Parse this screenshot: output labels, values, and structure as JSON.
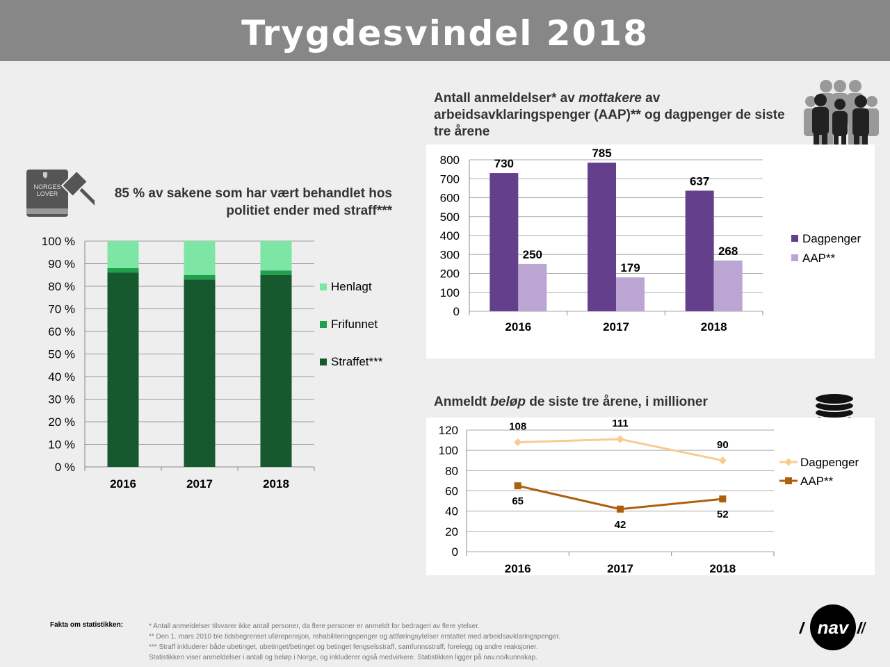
{
  "header": {
    "title": "Trygdesvindel 2018"
  },
  "left_chart": {
    "title": "85 % av sakene som har vært behandlet hos politiet ender med straff***",
    "icon": "law-book-gavel-icon",
    "book_label_1": "NORGES",
    "book_label_2": "LOVER"
  },
  "right_chart": {
    "title_part1": "Antall anmeldelser* av ",
    "title_emph": "mottakere",
    "title_part2": " av arbeidsavklaringspenger (AAP)** og dagpenger de siste tre årene",
    "icon": "people-group-icon"
  },
  "line_chart": {
    "title_part1": "Anmeldt ",
    "title_emph": "beløp",
    "title_part2": " de siste tre årene, i millioner",
    "icon": "coins-stack-icon"
  },
  "colors": {
    "straffet": "#17592e",
    "frifunnet": "#1fa04a",
    "henlagt": "#7de6a5",
    "dagpenger_bar": "#643f8c",
    "aap_bar": "#bba6d3",
    "dagpenger_line": "#f9cb90",
    "aap_line": "#ad5f0c"
  },
  "chart_data": [
    {
      "type": "bar",
      "stacked": true,
      "categories": [
        "2016",
        "2017",
        "2018"
      ],
      "series": [
        {
          "name": "Straffet***",
          "values": [
            86,
            83,
            85
          ]
        },
        {
          "name": "Frifunnet",
          "values": [
            2,
            2,
            2
          ]
        },
        {
          "name": "Henlagt",
          "values": [
            12,
            15,
            13
          ]
        }
      ],
      "ylim": [
        0,
        100
      ],
      "yticks": [
        "0 %",
        "10 %",
        "20 %",
        "30 %",
        "40 %",
        "50 %",
        "60 %",
        "70 %",
        "80 %",
        "90 %",
        "100 %"
      ],
      "grid": true,
      "legend": "right"
    },
    {
      "type": "bar",
      "categories": [
        "2016",
        "2017",
        "2018"
      ],
      "series": [
        {
          "name": "Dagpenger",
          "values": [
            730,
            785,
            637
          ]
        },
        {
          "name": "AAP**",
          "values": [
            250,
            179,
            268
          ]
        }
      ],
      "ylim": [
        0,
        800
      ],
      "yticks": [
        "0",
        "100",
        "200",
        "300",
        "400",
        "500",
        "600",
        "700",
        "800"
      ],
      "grid": true,
      "legend": "right"
    },
    {
      "type": "line",
      "categories": [
        "2016",
        "2017",
        "2018"
      ],
      "series": [
        {
          "name": "Dagpenger",
          "values": [
            108,
            111,
            90
          ]
        },
        {
          "name": "AAP**",
          "values": [
            65,
            42,
            52
          ]
        }
      ],
      "ylim": [
        0,
        120
      ],
      "yticks": [
        "0",
        "20",
        "40",
        "60",
        "80",
        "100",
        "120"
      ],
      "grid": true,
      "legend": "right"
    }
  ],
  "footer": {
    "label": "Fakta om statistikken:",
    "notes": [
      "* Antall anmeldelser tilsvarer ikke antall personer, da flere personer er anmeldt for bedrageri av flere ytelser.",
      "** Den 1. mars 2010 ble tidsbegrenset uførepensjon, rehabiliteringspenger og attføringsytelser erstattet med arbeidsavklaringspenger.",
      "*** Straff inkluderer både ubetinget, ubetinget/betinget og betinget fengselsstraff, samfunnsstraff, forelegg og andre reaksjoner.",
      "Statistikken viser anmeldelser i antall og beløp i Norge, og inkluderer også medvirkere. Statistikken ligger på nav.no/kunnskap."
    ],
    "logo_text": "nav",
    "logo_icon": "nav-logo-icon"
  }
}
